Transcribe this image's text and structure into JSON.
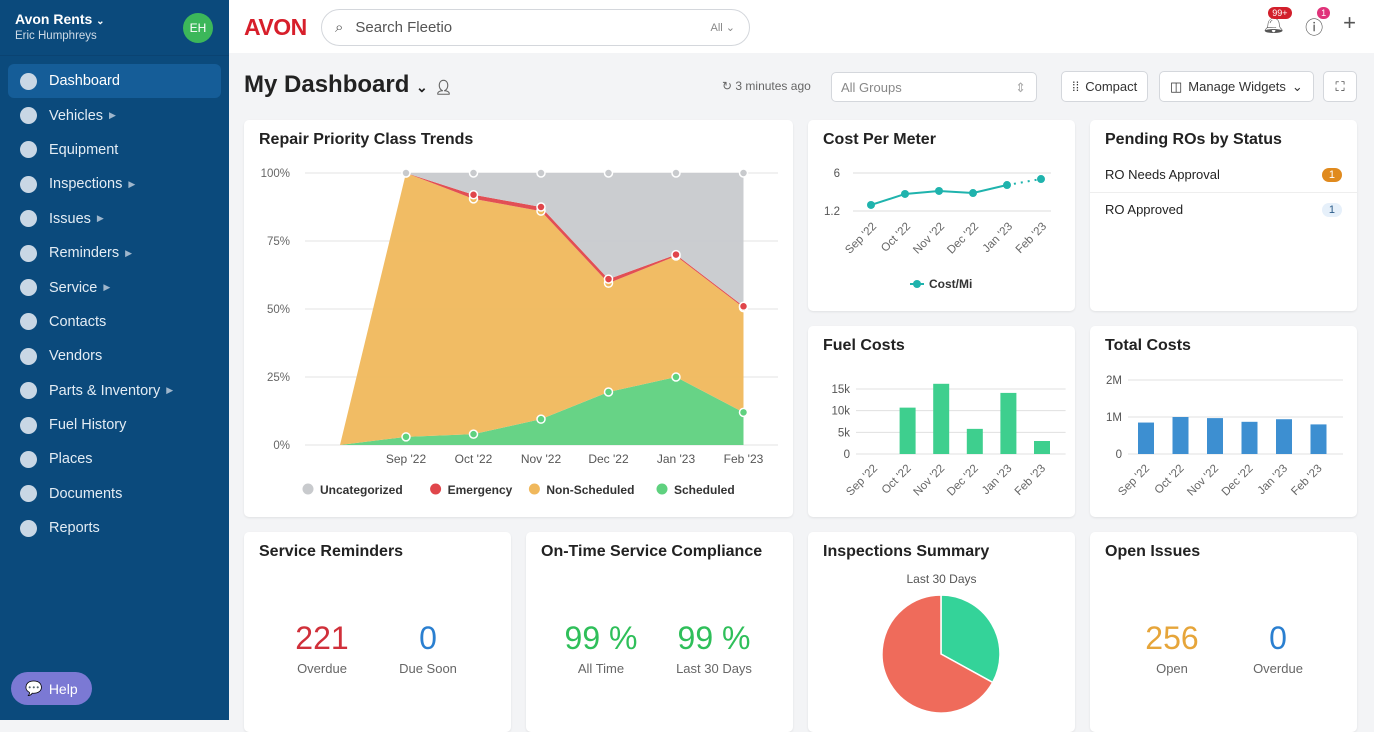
{
  "sidebar": {
    "account": "Avon Rents",
    "user": "Eric Humphreys",
    "avatar": "EH",
    "help": "Help",
    "items": [
      {
        "label": "Dashboard",
        "icon": "dashboard-icon",
        "active": true
      },
      {
        "label": "Vehicles",
        "icon": "car-icon",
        "sub": true
      },
      {
        "label": "Equipment",
        "icon": "equipment-icon"
      },
      {
        "label": "Inspections",
        "icon": "check-circle-icon",
        "sub": true
      },
      {
        "label": "Issues",
        "icon": "warning-icon",
        "sub": true
      },
      {
        "label": "Reminders",
        "icon": "alarm-icon",
        "sub": true
      },
      {
        "label": "Service",
        "icon": "wrench-icon",
        "sub": true
      },
      {
        "label": "Contacts",
        "icon": "contacts-icon"
      },
      {
        "label": "Vendors",
        "icon": "store-icon"
      },
      {
        "label": "Parts & Inventory",
        "icon": "box-icon",
        "sub": true
      },
      {
        "label": "Fuel History",
        "icon": "fuel-icon"
      },
      {
        "label": "Places",
        "icon": "pin-icon"
      },
      {
        "label": "Documents",
        "icon": "document-icon"
      },
      {
        "label": "Reports",
        "icon": "pie-icon"
      }
    ]
  },
  "topbar": {
    "logo": "AVON",
    "search_placeholder": "Search Fleetio",
    "search_scope": "All",
    "notif_badge": "99+",
    "help_badge": "1"
  },
  "header": {
    "title": "My Dashboard",
    "refreshed": "3 minutes ago",
    "groups_placeholder": "All Groups",
    "compact": "Compact",
    "manage": "Manage Widgets"
  },
  "widgets": {
    "repair": {
      "title": "Repair Priority Class Trends"
    },
    "cpm": {
      "title": "Cost Per Meter"
    },
    "pending": {
      "title": "Pending ROs by Status",
      "rows": [
        {
          "label": "RO Needs Approval",
          "count": "1"
        },
        {
          "label": "RO Approved",
          "count": "1"
        }
      ]
    },
    "fuel": {
      "title": "Fuel Costs"
    },
    "total": {
      "title": "Total Costs"
    },
    "reminders": {
      "title": "Service Reminders",
      "a": "221",
      "a_label": "Overdue",
      "b": "0",
      "b_label": "Due Soon"
    },
    "compliance": {
      "title": "On-Time Service Compliance",
      "a": "99 %",
      "a_label": "All Time",
      "b": "99 %",
      "b_label": "Last 30 Days"
    },
    "inspections": {
      "title": "Inspections Summary",
      "subtitle": "Last 30 Days"
    },
    "issues": {
      "title": "Open Issues",
      "a": "256",
      "a_label": "Open",
      "b": "0",
      "b_label": "Overdue"
    }
  },
  "chart_data": [
    {
      "type": "area",
      "stacked": true,
      "title": "Repair Priority Class Trends",
      "categories": [
        "Sep '22",
        "Oct '22",
        "Nov '22",
        "Dec '22",
        "Jan '23",
        "Feb '23"
      ],
      "yticks": [
        "0%",
        "25%",
        "50%",
        "75%",
        "100%"
      ],
      "ylim": [
        0,
        100
      ],
      "legend": "bottom",
      "series": [
        {
          "name": "Scheduled",
          "color": "#5fd17f",
          "values": [
            3,
            4,
            9.5,
            19.5,
            25,
            12
          ]
        },
        {
          "name": "Non-Scheduled",
          "color": "#f0b85c",
          "values": [
            97,
            86.5,
            76.5,
            40,
            44.5,
            38.5
          ]
        },
        {
          "name": "Emergency",
          "color": "#e0464b",
          "values": [
            0,
            1.5,
            1.5,
            1.5,
            0.5,
            0.5
          ]
        },
        {
          "name": "Uncategorized",
          "color": "#c8cacd",
          "values": [
            0,
            8,
            12.5,
            39,
            30,
            49
          ]
        }
      ]
    },
    {
      "type": "line",
      "title": "Cost Per Meter",
      "categories": [
        "Sep '22",
        "Oct '22",
        "Nov '22",
        "Dec '22",
        "Jan '23",
        "Feb '23"
      ],
      "yticks": [
        "1.2",
        "6"
      ],
      "series": [
        {
          "name": "Cost/Mi",
          "color": "#1fb3ad",
          "values": [
            1.96,
            3.35,
            3.73,
            3.47,
            4.48,
            5.24
          ]
        }
      ]
    },
    {
      "type": "bar",
      "title": "Fuel Costs",
      "categories": [
        "Sep '22",
        "Oct '22",
        "Nov '22",
        "Dec '22",
        "Jan '23",
        "Feb '23"
      ],
      "yticks": [
        "0",
        "5k",
        "10k",
        "15k"
      ],
      "ylim": [
        0,
        15000
      ],
      "color": "#3ecf8e",
      "values": [
        0,
        10700,
        16200,
        5800,
        14100,
        3000
      ]
    },
    {
      "type": "bar",
      "title": "Total Costs",
      "categories": [
        "Sep '22",
        "Oct '22",
        "Nov '22",
        "Dec '22",
        "Jan '23",
        "Feb '23"
      ],
      "yticks": [
        "0",
        "1M",
        "2M"
      ],
      "ylim": [
        0,
        2000000
      ],
      "color": "#3d8fd1",
      "values": [
        850000,
        1000000,
        970000,
        870000,
        940000,
        800000
      ]
    },
    {
      "type": "pie",
      "title": "Inspections Summary",
      "slices": [
        {
          "value": 0.33,
          "color": "#34d399"
        },
        {
          "value": 0.67,
          "color": "#ef6b5b"
        }
      ]
    }
  ]
}
